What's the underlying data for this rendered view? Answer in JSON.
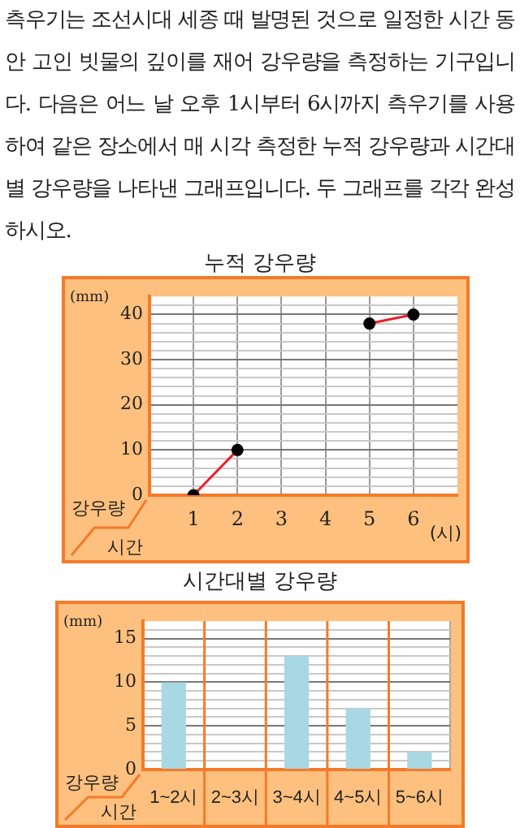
{
  "chart_data": [
    {
      "type": "line",
      "title": "누적 강우량",
      "xlabel": "시간",
      "ylabel": "강우량",
      "annotations": [
        "측우기는 조선시대 세종 때 발명된 것으로 일정한 시간 동안 고인 빗물의 깊이를 재어 강우량을 측정하는 기구입니다. 다음은 어느 날 오후 1시부터 6시까지 측우기를 사용하여 같은 장소에서 매 시각 측정한 누적 강우량과 시간대별 강우량을 나타낸 그래프입니다. 두 그래프를 각각 완성하시오.",
        "(mm)",
        "(시)"
      ],
      "x": [
        1,
        2,
        3,
        4,
        5,
        6
      ],
      "series": [
        {
          "color": "#e8202a",
          "values": [
            0,
            10,
            null,
            null,
            38,
            40
          ]
        }
      ],
      "marker": "circle",
      "line_style": "solid",
      "grid": true,
      "xlim": [
        0,
        7
      ],
      "xticks": [
        1,
        2,
        3,
        4,
        5,
        6
      ],
      "ylim": [
        0,
        44
      ],
      "yticks": [
        0,
        {
          "value": 2,
          "label": null
        },
        {
          "value": 4,
          "label": null
        },
        {
          "value": 6,
          "label": null
        },
        {
          "value": 8,
          "label": null
        },
        10,
        {
          "value": 12,
          "label": null
        },
        {
          "value": 14,
          "label": null
        },
        {
          "value": 16,
          "label": null
        },
        {
          "value": 18,
          "label": null
        },
        20,
        {
          "value": 22,
          "label": null
        },
        {
          "value": 24,
          "label": null
        },
        {
          "value": 26,
          "label": null
        },
        {
          "value": 28,
          "label": null
        },
        30,
        {
          "value": 32,
          "label": null
        },
        {
          "value": 34,
          "label": null
        },
        {
          "value": 36,
          "label": null
        },
        {
          "value": 38,
          "label": null
        },
        40,
        {
          "value": 42,
          "label": null
        }
      ]
    },
    {
      "type": "bar",
      "title": "시간대별 강우량",
      "xlabel": "시간",
      "ylabel": "강우량",
      "annotations": [
        "(mm)"
      ],
      "categories": [
        "1~2시",
        "2~3시",
        "3~4시",
        "4~5시",
        "5~6시"
      ],
      "values": [
        10,
        0,
        13,
        7,
        2
      ],
      "color": "#a8d8e4",
      "grid": true,
      "ylim": [
        0,
        17
      ],
      "yticks": [
        0,
        {
          "value": 1,
          "label": null
        },
        {
          "value": 2,
          "label": null
        },
        {
          "value": 3,
          "label": null
        },
        {
          "value": 4,
          "label": null
        },
        5,
        {
          "value": 6,
          "label": null
        },
        {
          "value": 7,
          "label": null
        },
        {
          "value": 8,
          "label": null
        },
        {
          "value": 9,
          "label": null
        },
        10,
        {
          "value": 11,
          "label": null
        },
        {
          "value": 12,
          "label": null
        },
        {
          "value": 13,
          "label": null
        },
        {
          "value": 14,
          "label": null
        },
        15,
        {
          "value": 16,
          "label": null
        }
      ]
    }
  ]
}
